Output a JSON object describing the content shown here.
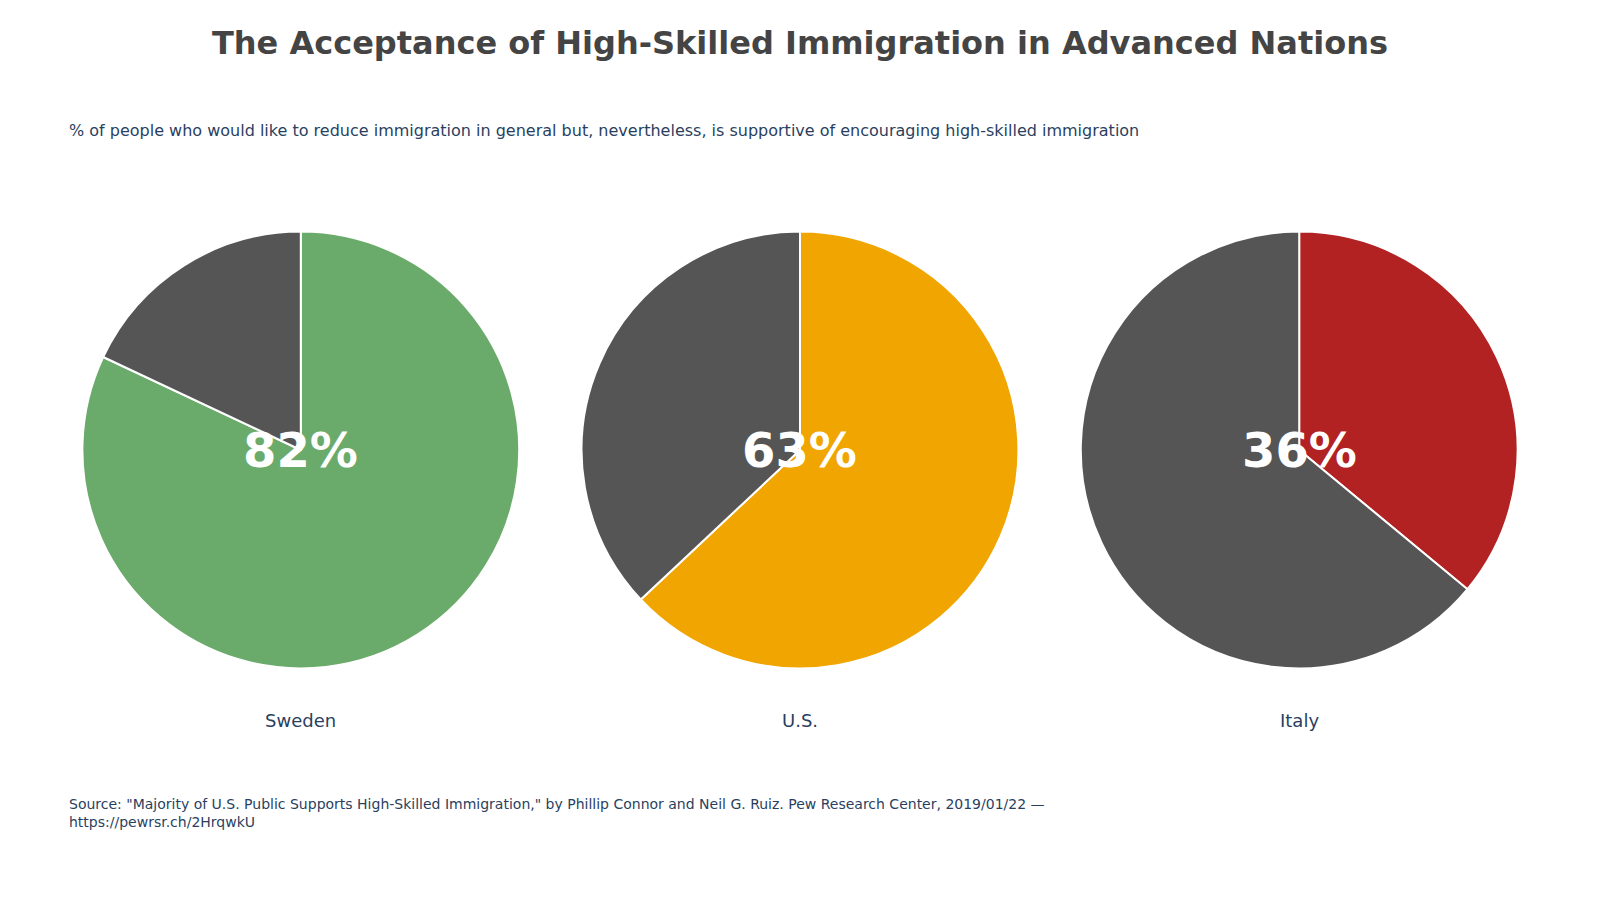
{
  "chart_data": {
    "type": "pie",
    "title": "The Acceptance of High-Skilled Immigration in Advanced Nations",
    "subtitle": "% of people who would like to reduce immigration in general but, nevertheless, is supportive of encouraging high-skilled immigration",
    "source": "Source: \"Majority of U.S. Public Supports High-Skilled Immigration,\" by Phillip Connor and Neil G. Ruiz. Pew Research Center, 2019/01/22 —\nhttps://pewrsr.ch/2HrqwkU",
    "pies": [
      {
        "label": "Sweden",
        "values": [
          82,
          18
        ],
        "colors": [
          "#6aaa6a",
          "#555555"
        ],
        "value_label": "82%"
      },
      {
        "label": "U.S.",
        "values": [
          63,
          37
        ],
        "colors": [
          "#f0a500",
          "#555555"
        ],
        "value_label": "63%"
      },
      {
        "label": "Italy",
        "values": [
          36,
          64
        ],
        "colors": [
          "#b22222",
          "#555555"
        ],
        "value_label": "36%"
      }
    ]
  }
}
